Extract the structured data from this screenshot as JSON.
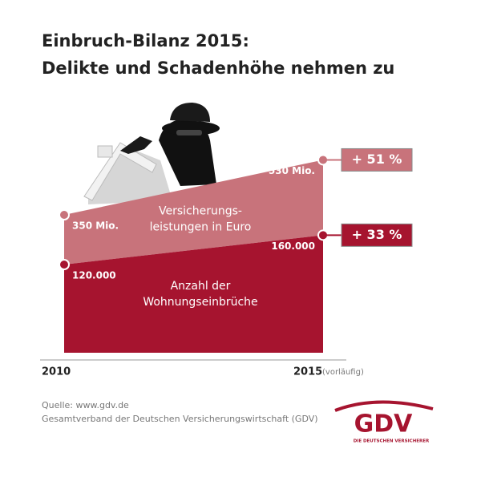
{
  "chart_data": {
    "type": "area",
    "title": [
      "Einbruch-Bilanz 2015:",
      "Delikte und Schadenhöhe nehmen zu"
    ],
    "categories": [
      "2010",
      "2015"
    ],
    "category_note": "(vorläufig)",
    "series": [
      {
        "name": [
          "Anzahl der",
          "Wohnungseinbrüche"
        ],
        "color": "#a6142f",
        "values": [
          120000,
          160000
        ],
        "value_labels": [
          "120.000",
          "160.000"
        ],
        "change_label": "+ 33 %"
      },
      {
        "name": [
          "Versicherungs-",
          "leistungen in Euro"
        ],
        "color": "#c8737b",
        "values": [
          350,
          530
        ],
        "value_labels": [
          "350 Mio.",
          "530 Mio."
        ],
        "change_label": "+ 51 %"
      }
    ],
    "source": [
      "Quelle: www.gdv.de",
      "Gesamtverband der Deutschen Versicherungswirtschaft (GDV)"
    ],
    "logo": {
      "text": "GDV",
      "tagline": "DIE DEUTSCHEN VERSICHERER"
    }
  }
}
